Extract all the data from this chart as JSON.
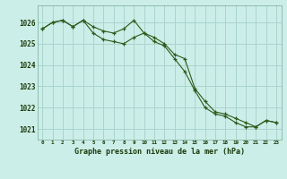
{
  "title": "Graphe pression niveau de la mer (hPa)",
  "background_color": "#cceee8",
  "grid_color": "#aad4ce",
  "line_color": "#2d5a1b",
  "marker_color": "#2d5a1b",
  "xlim": [
    -0.5,
    23.5
  ],
  "ylim": [
    1020.5,
    1026.8
  ],
  "yticks": [
    1021,
    1022,
    1023,
    1024,
    1025,
    1026
  ],
  "xtick_labels": [
    "0",
    "1",
    "2",
    "3",
    "4",
    "5",
    "6",
    "7",
    "8",
    "9",
    "10",
    "11",
    "12",
    "13",
    "14",
    "15",
    "16",
    "17",
    "18",
    "19",
    "20",
    "21",
    "22",
    "23"
  ],
  "series1_x": [
    0,
    1,
    2,
    3,
    4,
    5,
    6,
    7,
    8,
    9,
    10,
    11,
    12,
    13,
    14,
    15,
    16,
    17,
    18,
    19,
    20,
    21,
    22,
    23
  ],
  "series1_y": [
    1025.7,
    1026.0,
    1026.1,
    1025.8,
    1026.1,
    1025.8,
    1025.6,
    1025.5,
    1025.7,
    1026.1,
    1025.5,
    1025.1,
    1024.9,
    1024.3,
    1023.7,
    1022.8,
    1022.0,
    1021.7,
    1021.6,
    1021.3,
    1021.1,
    1021.1,
    1021.4,
    1021.3
  ],
  "series2_x": [
    0,
    1,
    2,
    3,
    4,
    5,
    6,
    7,
    8,
    9,
    10,
    11,
    12,
    13,
    14,
    15,
    16,
    17,
    18,
    19,
    20,
    21,
    22,
    23
  ],
  "series2_y": [
    1025.7,
    1026.0,
    1026.1,
    1025.8,
    1026.1,
    1025.5,
    1025.2,
    1025.1,
    1025.0,
    1025.3,
    1025.5,
    1025.3,
    1025.0,
    1024.5,
    1024.3,
    1022.9,
    1022.3,
    1021.8,
    1021.7,
    1021.5,
    1021.3,
    1021.1,
    1021.4,
    1021.3
  ]
}
